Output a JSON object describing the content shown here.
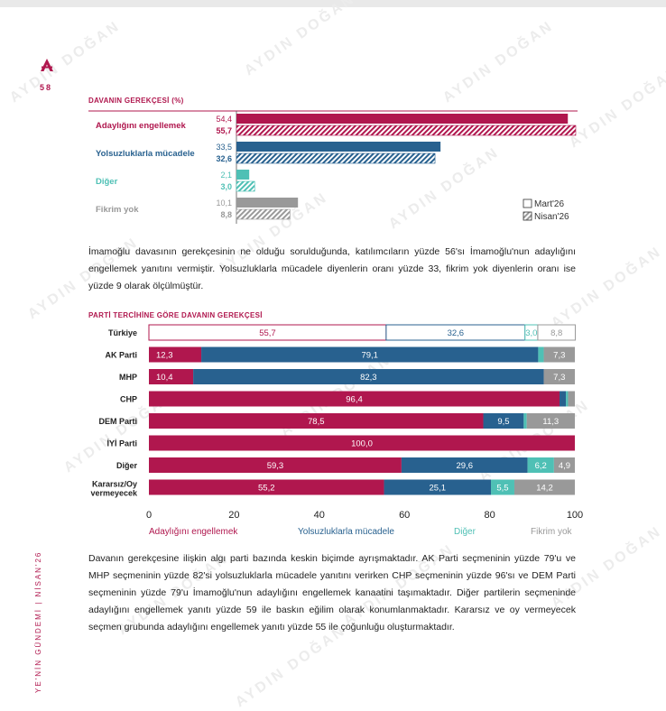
{
  "page": {
    "number": "58",
    "side_text": "YE'NİN GÜNDEMİ  |  NİSAN'26",
    "watermark": "AYDIN DOĞAN",
    "brand_color": "#b0174e"
  },
  "chart1": {
    "title": "DAVANIN GEREKÇESİ (%)",
    "colors": [
      "#b0174e",
      "#28618f",
      "#4fc0b5",
      "#999999"
    ],
    "categories": [
      "Adaylığını engellemek",
      "Yolsuzluklarla mücadele",
      "Diğer",
      "Fikrim yok"
    ],
    "series": [
      {
        "name": "Mart'26",
        "values": [
          54.4,
          33.5,
          2.1,
          10.1
        ],
        "labels": [
          "54,4",
          "33,5",
          "2,1",
          "10,1"
        ]
      },
      {
        "name": "Nisan'26",
        "values": [
          55.7,
          32.6,
          3.0,
          8.8
        ],
        "labels": [
          "55,7",
          "32,6",
          "3,0",
          "8,8"
        ]
      }
    ]
  },
  "paragraph1": "İmamoğlu davasının gerekçesinin ne olduğu sorulduğunda, katılımcıların yüzde 56'sı İmamoğlu'nun adaylığını engellemek yanıtını vermiştir. Yolsuzluklarla mücadele diyenlerin oranı yüzde 33, fikrim yok diyenlerin oranı ise yüzde 9 olarak ölçülmüştür.",
  "chart2": {
    "title": "PARTİ TERCİHİNE GÖRE DAVANIN GEREKÇESİ",
    "xticks": [
      "0",
      "20",
      "40",
      "60",
      "80",
      "100"
    ],
    "colors": [
      "#b0174e",
      "#28618f",
      "#4fc0b5",
      "#999999"
    ],
    "series": [
      "Adaylığını engellemek",
      "Yolsuzluklarla mücadele",
      "Diğer",
      "Fikrim yok"
    ],
    "rows": [
      {
        "name": "Türkiye",
        "values": [
          55.7,
          32.6,
          3.0,
          8.8
        ],
        "labels": [
          "55,7",
          "32,6",
          "3,0",
          "8,8"
        ],
        "outline": true
      },
      {
        "name": "AK Parti",
        "values": [
          12.3,
          79.1,
          1.3,
          7.3
        ],
        "labels": [
          "12,3",
          "79,1",
          "",
          "7,3"
        ]
      },
      {
        "name": "MHP",
        "values": [
          10.4,
          82.3,
          0,
          7.3
        ],
        "labels": [
          "10,4",
          "82,3",
          "",
          "7,3"
        ]
      },
      {
        "name": "CHP",
        "values": [
          96.4,
          1.5,
          0.5,
          1.6
        ],
        "labels": [
          "96,4",
          "",
          "",
          ""
        ]
      },
      {
        "name": "DEM Parti",
        "values": [
          78.5,
          9.5,
          0.7,
          11.3
        ],
        "labels": [
          "78,5",
          "9,5",
          "",
          "11,3"
        ]
      },
      {
        "name": "İYİ Parti",
        "values": [
          100.0,
          0,
          0,
          0
        ],
        "labels": [
          "100,0",
          "",
          "",
          ""
        ]
      },
      {
        "name": "Diğer",
        "values": [
          59.3,
          29.6,
          6.2,
          4.9
        ],
        "labels": [
          "59,3",
          "29,6",
          "6,2",
          "4,9"
        ]
      },
      {
        "name": "Kararsız/Oy vermeyecek",
        "values": [
          55.2,
          25.1,
          5.5,
          14.2
        ],
        "labels": [
          "55,2",
          "25,1",
          "5,5",
          "14,2"
        ]
      }
    ]
  },
  "paragraph2": "Davanın gerekçesine ilişkin algı parti bazında keskin biçimde ayrışmaktadır. AK Parti seçmeninin yüzde 79'u ve MHP seçmeninin yüzde 82'si yolsuzluklarla mücadele yanıtını verirken CHP seçmeninin yüzde 96'sı ve DEM Parti seçmeninin yüzde 79'u İmamoğlu'nun adaylığını engellemek kanaatini taşımaktadır. Diğer partilerin seçmeninde adaylığını engellemek yanıtı yüzde 59 ile baskın eğilim olarak konumlanmaktadır. Kararsız ve oy vermeyecek seçmen grubunda adaylığını engellemek yanıtı yüzde 55 ile çoğunluğu oluşturmaktadır.",
  "chart_data": [
    {
      "type": "bar",
      "title": "DAVANIN GEREKÇESİ (%)",
      "categories": [
        "Adaylığını engellemek",
        "Yolsuzluklarla mücadele",
        "Diğer",
        "Fikrim yok"
      ],
      "series": [
        {
          "name": "Mart'26",
          "values": [
            54.4,
            33.5,
            2.1,
            10.1
          ]
        },
        {
          "name": "Nisan'26",
          "values": [
            55.7,
            32.6,
            3.0,
            8.8
          ]
        }
      ],
      "legend": "right"
    },
    {
      "type": "bar",
      "stacked": true,
      "title": "PARTİ TERCİHİNE GÖRE DAVANIN GEREKÇESİ",
      "categories": [
        "Türkiye",
        "AK Parti",
        "MHP",
        "CHP",
        "DEM Parti",
        "İYİ Parti",
        "Diğer",
        "Kararsız/Oy vermeyecek"
      ],
      "series": [
        {
          "name": "Adaylığını engellemek",
          "values": [
            55.7,
            12.3,
            10.4,
            96.4,
            78.5,
            100.0,
            59.3,
            55.2
          ]
        },
        {
          "name": "Yolsuzluklarla mücadele",
          "values": [
            32.6,
            79.1,
            82.3,
            1.5,
            9.5,
            0,
            29.6,
            25.1
          ]
        },
        {
          "name": "Diğer",
          "values": [
            3.0,
            1.3,
            0,
            0.5,
            0.7,
            0,
            6.2,
            5.5
          ]
        },
        {
          "name": "Fikrim yok",
          "values": [
            8.8,
            7.3,
            7.3,
            1.6,
            11.3,
            0,
            4.9,
            14.2
          ]
        }
      ],
      "xlim": [
        0,
        100
      ],
      "legend": "bottom"
    }
  ]
}
